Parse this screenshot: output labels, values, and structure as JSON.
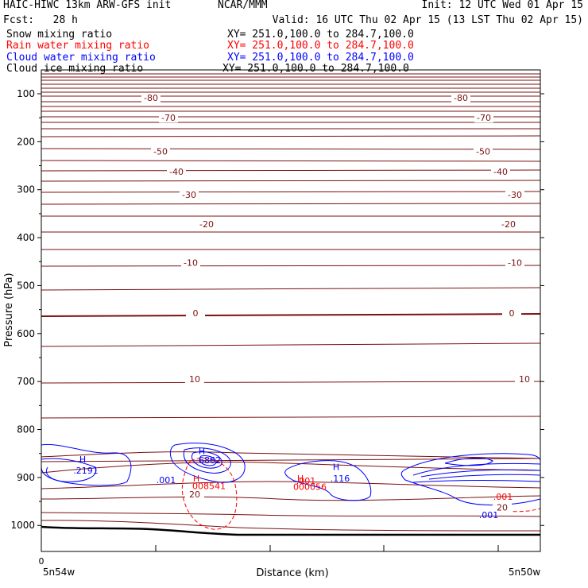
{
  "header": {
    "title_left": "HAIC-HIWC 13km ARW-GFS init",
    "center": "NCAR/MMM",
    "init": "Init: 12 UTC Wed 01 Apr 15",
    "fcst": "Fcst:   28 h",
    "valid": "Valid: 16 UTC Thu 02 Apr 15 (13 LST Thu 02 Apr 15)"
  },
  "legend": [
    {
      "name": "Snow mixing ratio",
      "xy": "XY= 251.0,100.0 to 284.7,100.0",
      "color": "#000000"
    },
    {
      "name": "Rain water mixing ratio",
      "xy": "XY= 251.0,100.0 to 284.7,100.0",
      "color": "#ff0000"
    },
    {
      "name": "Cloud water mixing ratio",
      "xy": "XY= 251.0,100.0 to 284.7,100.0",
      "color": "#0000ff"
    },
    {
      "name": "Cloud ice mixing ratio",
      "xy": "XY= 251.0,100.0 to 284.7,100.0",
      "color": "#000000"
    }
  ],
  "chart_data": {
    "type": "line",
    "xlabel": "Distance (km)",
    "ylabel": "Pressure (hPa)",
    "ylim": [
      1050,
      50
    ],
    "x_ticklabels": {
      "start_number": "0",
      "left": "5n54w",
      "right": "5n50w"
    },
    "y_ticks": [
      100,
      200,
      300,
      400,
      500,
      600,
      700,
      800,
      900,
      1000
    ],
    "colors": {
      "temperature": "#7a1010",
      "cloud_water": "#0000ff",
      "rain_water": "#ff0000",
      "terrain": "#000000"
    },
    "isotherm_labels": [
      {
        "label": "-80",
        "p": 108,
        "side": "left"
      },
      {
        "label": "-80",
        "p": 108,
        "side": "right"
      },
      {
        "label": "-70",
        "p": 150,
        "side": "left"
      },
      {
        "label": "-70",
        "p": 150,
        "side": "right"
      },
      {
        "label": "-50",
        "p": 220,
        "side": "left"
      },
      {
        "label": "-50",
        "p": 220,
        "side": "right"
      },
      {
        "label": "-40",
        "p": 262,
        "side": "left"
      },
      {
        "label": "-40",
        "p": 262,
        "side": "right"
      },
      {
        "label": "-30",
        "p": 310,
        "side": "left"
      },
      {
        "label": "-30",
        "p": 310,
        "side": "right"
      },
      {
        "label": "-20",
        "p": 372,
        "side": "left"
      },
      {
        "label": "-20",
        "p": 372,
        "side": "right"
      },
      {
        "label": "-10",
        "p": 452,
        "side": "left"
      },
      {
        "label": "-10",
        "p": 452,
        "side": "right"
      },
      {
        "label": "0",
        "p": 557,
        "side": "left"
      },
      {
        "label": "0",
        "p": 557,
        "side": "right"
      },
      {
        "label": "10",
        "p": 695,
        "side": "left"
      },
      {
        "label": "10",
        "p": 695,
        "side": "right"
      },
      {
        "label": "20",
        "p": 935,
        "side": "left"
      },
      {
        "label": "20",
        "p": 962,
        "side": "right"
      }
    ],
    "annotations": [
      {
        "text": "H",
        "color": "#0000ff",
        "p": 862
      },
      {
        "text": ".2191",
        "color": "#0000ff",
        "p": 885
      },
      {
        "text": "H",
        "color": "#0000ff",
        "p": 845
      },
      {
        "text": "6862",
        "color": "#0000ff",
        "p": 864
      },
      {
        "text": ".001",
        "color": "#0000ff",
        "p": 905
      },
      {
        "text": "H",
        "color": "#ff0000",
        "p": 902
      },
      {
        "text": "008541",
        "color": "#ff0000",
        "p": 918
      },
      {
        "text": "H",
        "color": "#0000ff",
        "p": 878
      },
      {
        "text": ".116",
        "color": "#0000ff",
        "p": 902
      },
      {
        "text": "H",
        "color": "#ff0000",
        "p": 902
      },
      {
        "text": ".001",
        "color": "#ff0000",
        "p": 907
      },
      {
        "text": "000056",
        "color": "#ff0000",
        "p": 919
      },
      {
        "text": ".001",
        "color": "#ff0000",
        "p": 940
      },
      {
        "text": ".001",
        "color": "#0000ff",
        "p": 978
      }
    ]
  }
}
